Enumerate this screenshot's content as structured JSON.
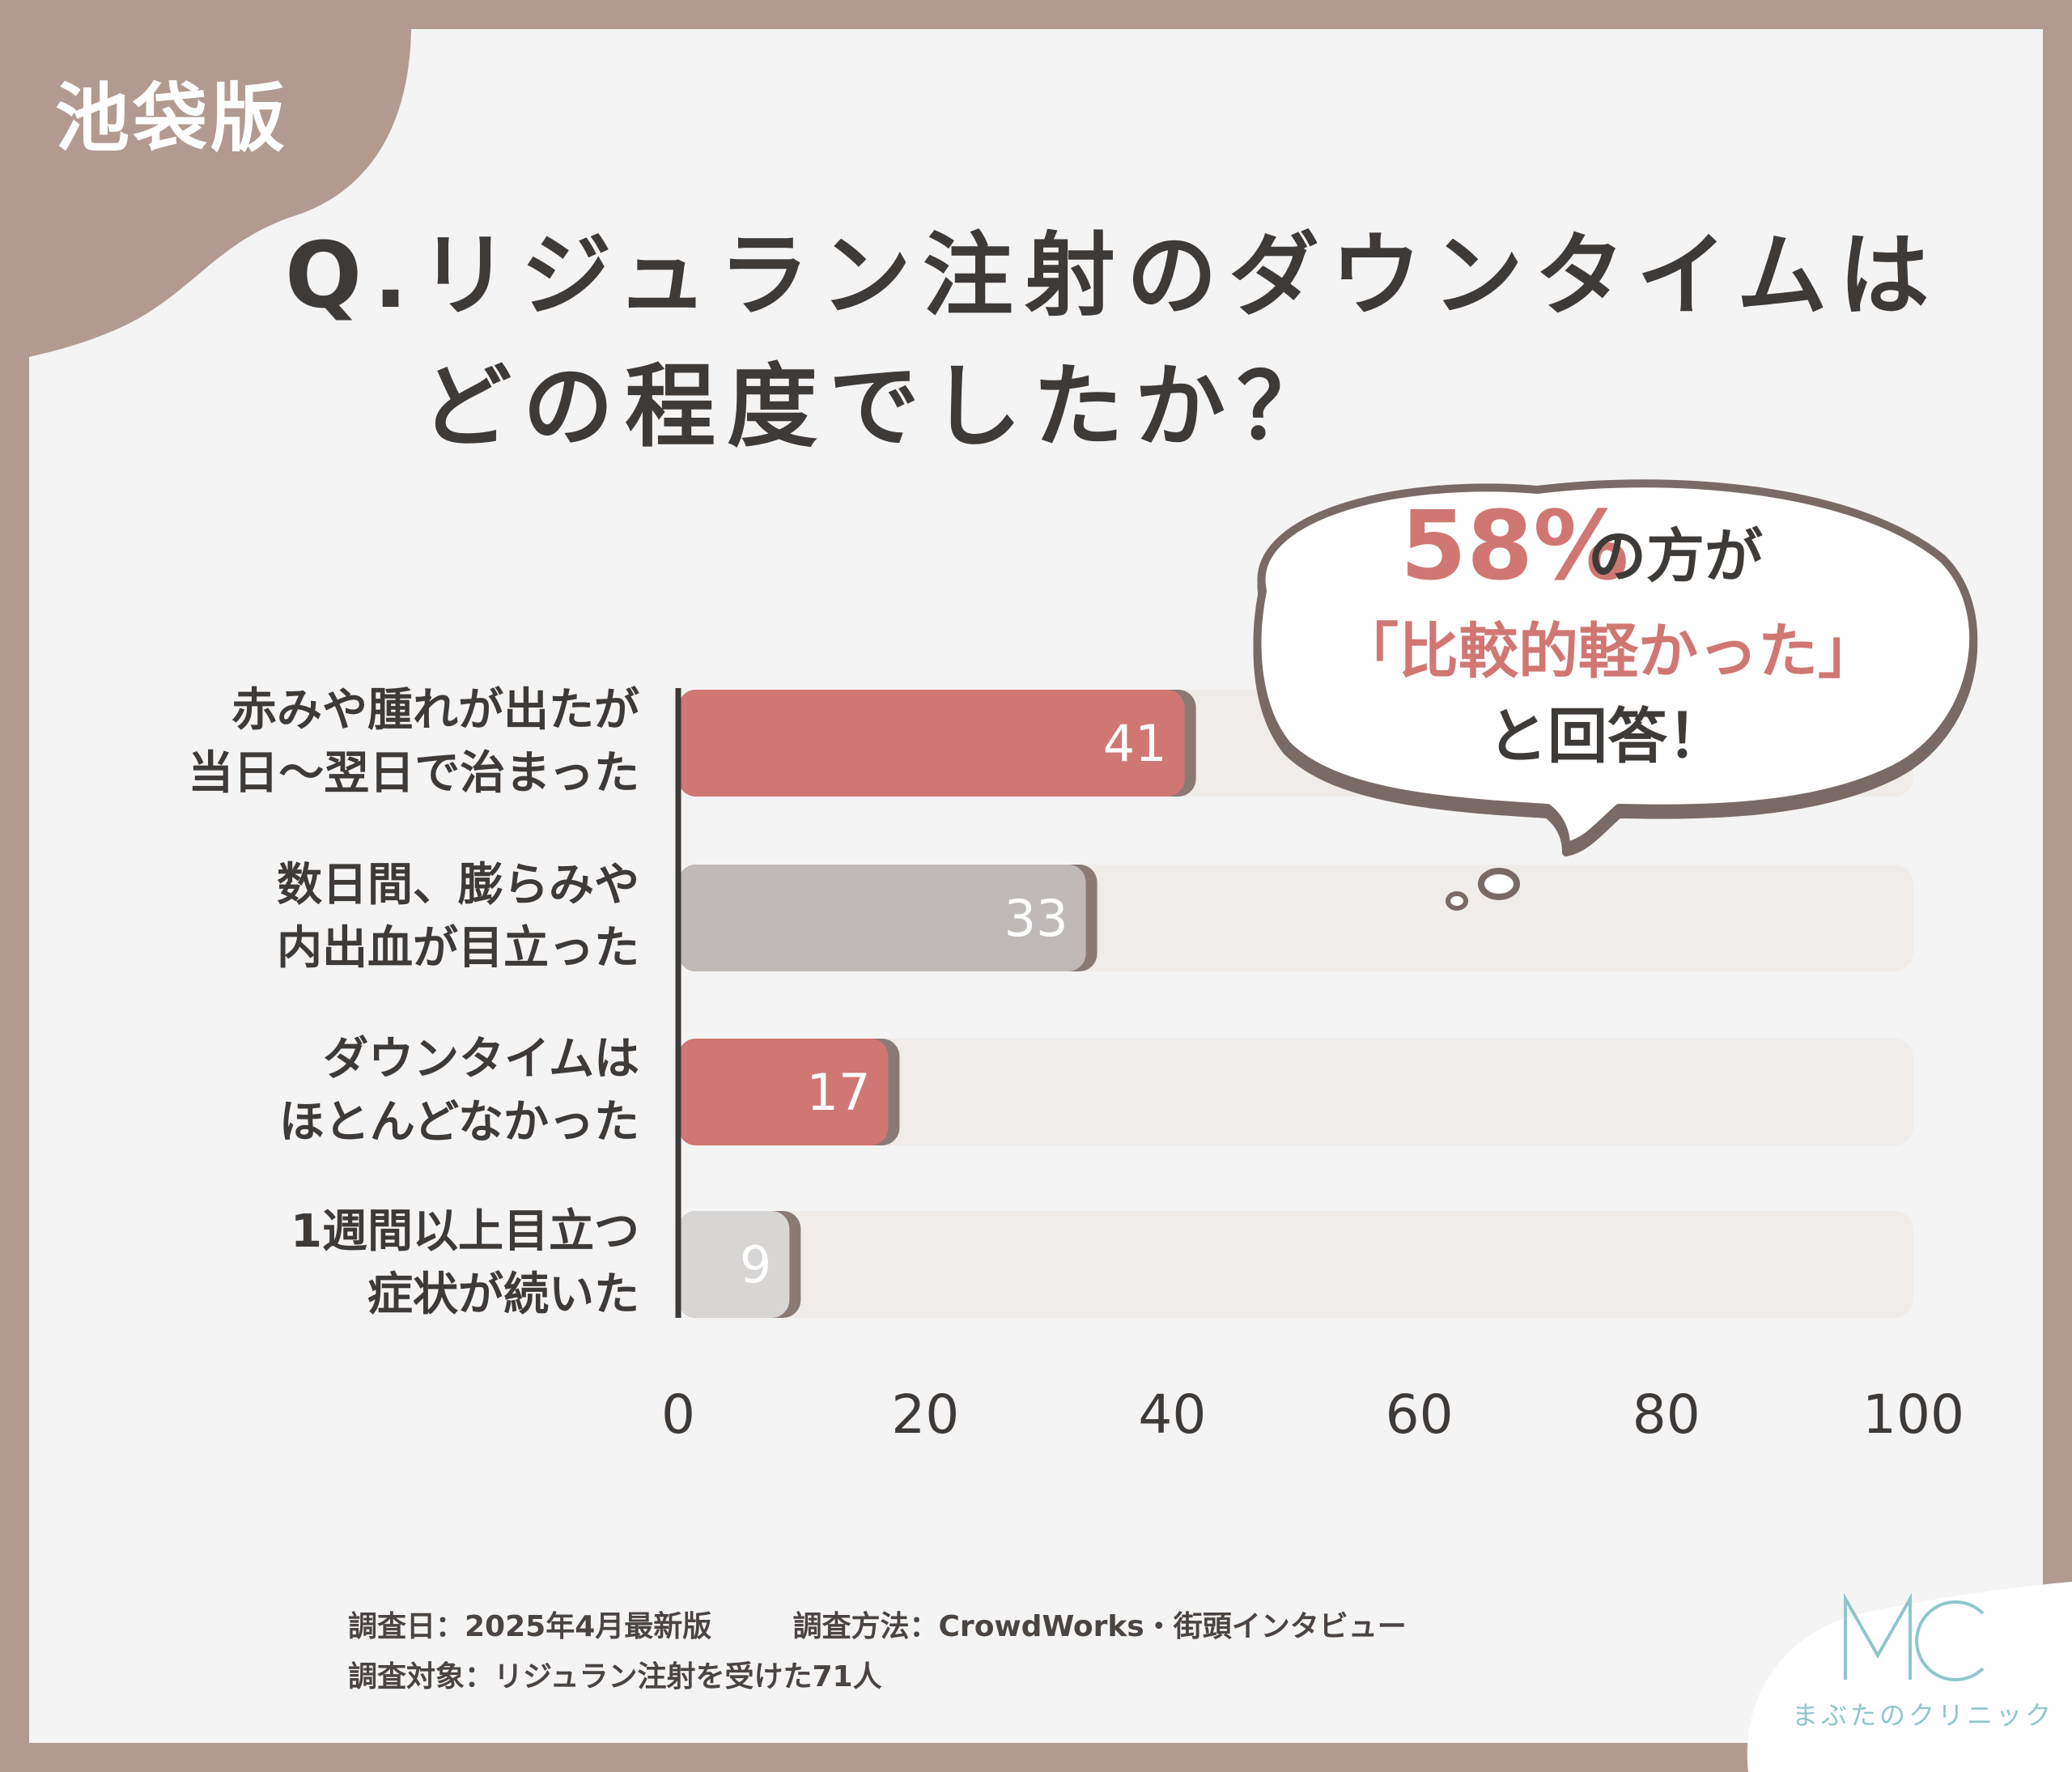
{
  "badge": "池袋版",
  "title": {
    "line1": "Q.リジュラン注射のダウンタイムは",
    "line2": "どの程度でしたか？"
  },
  "callout": {
    "percent": "58%",
    "suffix": "の方が",
    "highlight": "「比較的軽かった」",
    "line3": "と回答！"
  },
  "chart_data": {
    "type": "bar",
    "orientation": "horizontal",
    "categories": [
      [
        "赤みや腫れが出たが",
        "当日〜翌日で治まった"
      ],
      [
        "数日間、膨らみや",
        "内出血が目立った"
      ],
      [
        "ダウンタイムは",
        "ほとんどなかった"
      ],
      [
        "1週間以上目立つ",
        "症状が続いた"
      ]
    ],
    "values": [
      41,
      33,
      17,
      9
    ],
    "bar_colors": [
      "#d07774",
      "#bfbab8",
      "#d07774",
      "#d8d6d5"
    ],
    "xlim": [
      0,
      100
    ],
    "xticks": [
      0,
      20,
      40,
      60,
      80,
      100
    ],
    "track_color": "#efecea"
  },
  "footer": {
    "date": "調査日：2025年4月最新版",
    "method": "調査方法：CrowdWorks・街頭インタビュー",
    "target": "調査対象：リジュラン注射を受けた71人"
  },
  "logo": {
    "mark": "MC",
    "name": "まぶたのクリニック",
    "color": "#8fc6cc"
  }
}
